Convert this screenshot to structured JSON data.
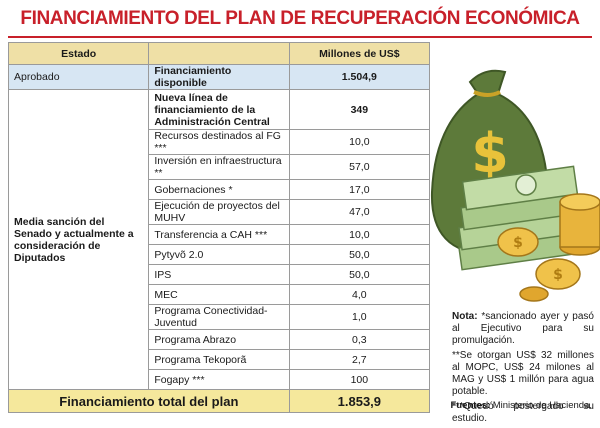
{
  "title": "FINANCIAMIENTO DEL PLAN DE RECUPERACIÓN ECONÓMICA",
  "table": {
    "header": [
      "Estado",
      "Millones de US$"
    ],
    "approved": {
      "status": "Aprobado",
      "label": "Financiamiento disponible",
      "value": "1.504,9"
    },
    "pending_status": "Media sanción del Senado y actualmente a consideración de Diputados",
    "rows": [
      [
        "Nueva línea de financiamiento de la Administración Central",
        "349"
      ],
      [
        "Recursos destinados al FG ***",
        "10,0"
      ],
      [
        "Inversión en infraestructura **",
        "57,0"
      ],
      [
        "Gobernaciones *",
        "17,0"
      ],
      [
        "Ejecución de proyectos del MUHV",
        "47,0"
      ],
      [
        "Transferencia a CAH ***",
        "10,0"
      ],
      [
        "Pytyvõ 2.0",
        "50,0"
      ],
      [
        "IPS",
        "50,0"
      ],
      [
        "MEC",
        "4,0"
      ],
      [
        "Programa Conectividad-Juventud",
        "1,0"
      ],
      [
        "Programa Abrazo",
        "0,3"
      ],
      [
        "Programa Tekoporã",
        "2,7"
      ],
      [
        "Fogapy ***",
        "100"
      ]
    ],
    "total": {
      "label": "Financiamiento total del plan",
      "value": "1.853,9"
    }
  },
  "notes": {
    "lead": "Nota:",
    "items": [
      "*sancionado ayer y pasó al Ejecutivo para su promulgación.",
      "**Se otorgan US$ 32 millones al MOPC, US$ 24 milones al MAG y US$ 1 millón para agua potable.",
      "***Quedó postergado su estudio."
    ]
  },
  "source": {
    "label": "Fuentes:",
    "text": "Ministerio de Hacienda."
  }
}
